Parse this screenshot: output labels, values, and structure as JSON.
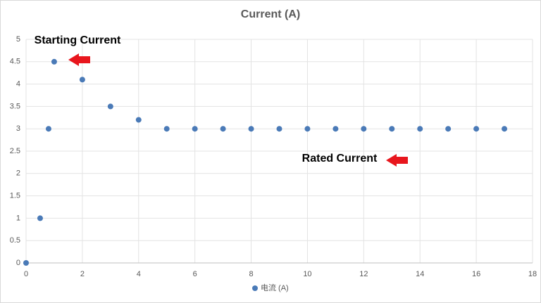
{
  "chart_data": {
    "type": "scatter",
    "title": "Current (A)",
    "series": [
      {
        "name": "电流 (A)",
        "color": "#4a7ab7",
        "x": [
          0,
          0.5,
          0.8,
          1,
          2,
          3,
          4,
          5,
          6,
          7,
          8,
          9,
          10,
          11,
          12,
          13,
          14,
          15,
          16,
          17
        ],
        "values": [
          0,
          1,
          3,
          4.5,
          4.1,
          3.5,
          3.2,
          3,
          3,
          3,
          3,
          3,
          3,
          3,
          3,
          3,
          3,
          3,
          3,
          3
        ]
      }
    ],
    "xlim": [
      0,
      18
    ],
    "xticks": [
      0,
      2,
      4,
      6,
      8,
      10,
      12,
      14,
      16,
      18
    ],
    "ylim": [
      0,
      5
    ],
    "yticks": [
      0,
      0.5,
      1,
      1.5,
      2,
      2.5,
      3,
      3.5,
      4,
      4.5,
      5
    ],
    "grid": true,
    "legend": "bottom",
    "annotations": [
      "Starting Current",
      "Rated Current"
    ]
  }
}
